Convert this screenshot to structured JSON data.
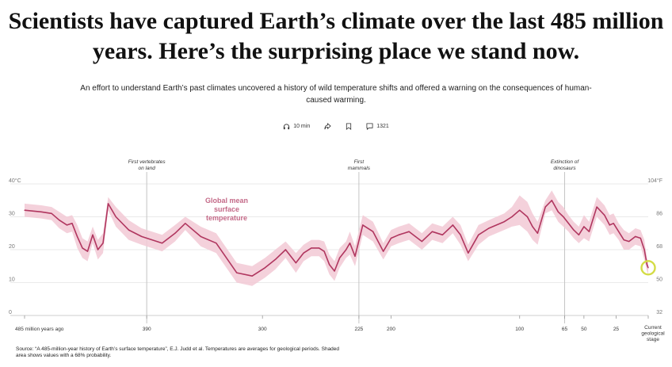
{
  "headline": "Scientists have captured Earth’s climate over the last 485 million years. Here’s the surprising place we stand now.",
  "dek": "An effort to understand Earth’s past climates uncovered a history of wild temperature shifts and offered a warning on the consequences of human-caused warming.",
  "meta": {
    "listen_label": "10 min",
    "comment_count": "1321",
    "icons": [
      "headphones-icon",
      "share-icon",
      "bookmark-icon",
      "comment-icon"
    ]
  },
  "source": "Source: “A 485-million-year history of Earth’s surface temperature”, E.J. Judd et al. Temperatures are averages for geological periods. Shaded area shows values with a 68% probability.",
  "colors": {
    "line": "#b0365f",
    "band": "#f2c9d5",
    "highlight": "#d4dc46",
    "grid": "#e3e3e3",
    "event_line": "#c4c4c4"
  },
  "chart_data": {
    "type": "line",
    "title": "",
    "xlabel": "",
    "ylabel": "",
    "x_unit": "million years ago",
    "xlim": [
      485,
      0
    ],
    "ylim": [
      0,
      40
    ],
    "grid": true,
    "series_label": "Global mean surface temperature",
    "y_left_ticks": [
      {
        "value": 40,
        "label": "40°C"
      },
      {
        "value": 30,
        "label": "30"
      },
      {
        "value": 20,
        "label": "20"
      },
      {
        "value": 10,
        "label": "10"
      },
      {
        "value": 0,
        "label": "0"
      }
    ],
    "y_right_ticks": [
      {
        "value": 40,
        "label": "104°F"
      },
      {
        "value": 30,
        "label": "86"
      },
      {
        "value": 20,
        "label": "68"
      },
      {
        "value": 10,
        "label": "50"
      },
      {
        "value": 0,
        "label": "32"
      }
    ],
    "x_ticks": [
      {
        "value": 485,
        "label": "485 million years ago"
      },
      {
        "value": 390,
        "label": "390"
      },
      {
        "value": 300,
        "label": "300"
      },
      {
        "value": 225,
        "label": "225"
      },
      {
        "value": 200,
        "label": "200"
      },
      {
        "value": 100,
        "label": "100"
      },
      {
        "value": 65,
        "label": "65"
      },
      {
        "value": 50,
        "label": "50"
      },
      {
        "value": 25,
        "label": "25"
      },
      {
        "value": 0,
        "label": "Current geological stage"
      }
    ],
    "events": [
      {
        "x": 390,
        "label": "First vertebrates on land"
      },
      {
        "x": 225,
        "label": "First mammals"
      },
      {
        "x": 65,
        "label": "Extinction of dinosaurs"
      }
    ],
    "x": [
      485,
      472,
      464,
      458,
      452,
      448,
      444,
      440,
      436,
      432,
      428,
      424,
      420,
      414,
      404,
      394,
      378,
      368,
      360,
      348,
      336,
      320,
      308,
      298,
      290,
      282,
      274,
      268,
      262,
      256,
      252,
      248,
      244,
      240,
      235,
      232,
      228,
      222,
      214,
      206,
      200,
      194,
      186,
      176,
      168,
      160,
      152,
      146,
      140,
      132,
      124,
      118,
      112,
      106,
      100,
      94,
      90,
      86,
      80,
      75,
      70,
      66,
      62,
      58,
      54,
      50,
      46,
      40,
      34,
      30,
      27,
      23,
      19,
      15,
      10,
      6,
      3,
      1,
      0
    ],
    "values": [
      32,
      31.5,
      31,
      29,
      27.5,
      28,
      24,
      20.5,
      19.5,
      24.5,
      20,
      22,
      34,
      30,
      26,
      24,
      22,
      25,
      28,
      24,
      22,
      13,
      12,
      14.5,
      17,
      20,
      16,
      19,
      20.5,
      20.5,
      19.5,
      15.5,
      13.5,
      17.5,
      20,
      22,
      18,
      27.5,
      25.5,
      19.5,
      23.5,
      24.5,
      25.5,
      22.5,
      25.5,
      24.5,
      27.5,
      24.5,
      19,
      24.5,
      26.5,
      27.5,
      28.5,
      30,
      32,
      30,
      27,
      25,
      33,
      35,
      31.5,
      30,
      28,
      26,
      24.5,
      27,
      25.5,
      33,
      30.5,
      27.5,
      28,
      25.5,
      23,
      22.5,
      24,
      23.5,
      20,
      15.5,
      14.5
    ],
    "band_upper": [
      34,
      33.5,
      33,
      31.5,
      30,
      30.5,
      27.5,
      23.5,
      22.5,
      27,
      23,
      25,
      36,
      33,
      29,
      26.5,
      24.5,
      27.5,
      30,
      27,
      25,
      16,
      15,
      17.5,
      20,
      22.5,
      19,
      21.5,
      23,
      23,
      22.5,
      18.5,
      16.5,
      20.5,
      22.5,
      25.5,
      21,
      30.5,
      28.5,
      22,
      26,
      27,
      28,
      25,
      28,
      27,
      30,
      27.5,
      21.5,
      27.5,
      29,
      30,
      31,
      33,
      36.5,
      34.5,
      31,
      28.5,
      35,
      38,
      34.5,
      33,
      30.5,
      28.5,
      27,
      30.5,
      28.5,
      36,
      33.5,
      30.5,
      31,
      28,
      26,
      25,
      26.5,
      26,
      23,
      17.5,
      16.5
    ],
    "band_lower": [
      30,
      29.5,
      29,
      26.5,
      25,
      25.5,
      20.5,
      17.5,
      16.5,
      22,
      17,
      19,
      32,
      27,
      23,
      21.5,
      19.5,
      22.5,
      26,
      21,
      19,
      10,
      9,
      11.5,
      14,
      17.5,
      13,
      16.5,
      18,
      18,
      16.5,
      12.5,
      10.5,
      14.5,
      17.5,
      18.5,
      15,
      24.5,
      22.5,
      17,
      21,
      22,
      23,
      20,
      23,
      22,
      25,
      21.5,
      16.5,
      21.5,
      24,
      25,
      26,
      27,
      27.5,
      25.5,
      23,
      21.5,
      31,
      32,
      28.5,
      27,
      25.5,
      23.5,
      22,
      23.5,
      22.5,
      30,
      27.5,
      24.5,
      25,
      23,
      20,
      20,
      21.5,
      21,
      17,
      13.5,
      12.5
    ],
    "highlight_point": {
      "x": 0,
      "y": 14.5
    }
  }
}
